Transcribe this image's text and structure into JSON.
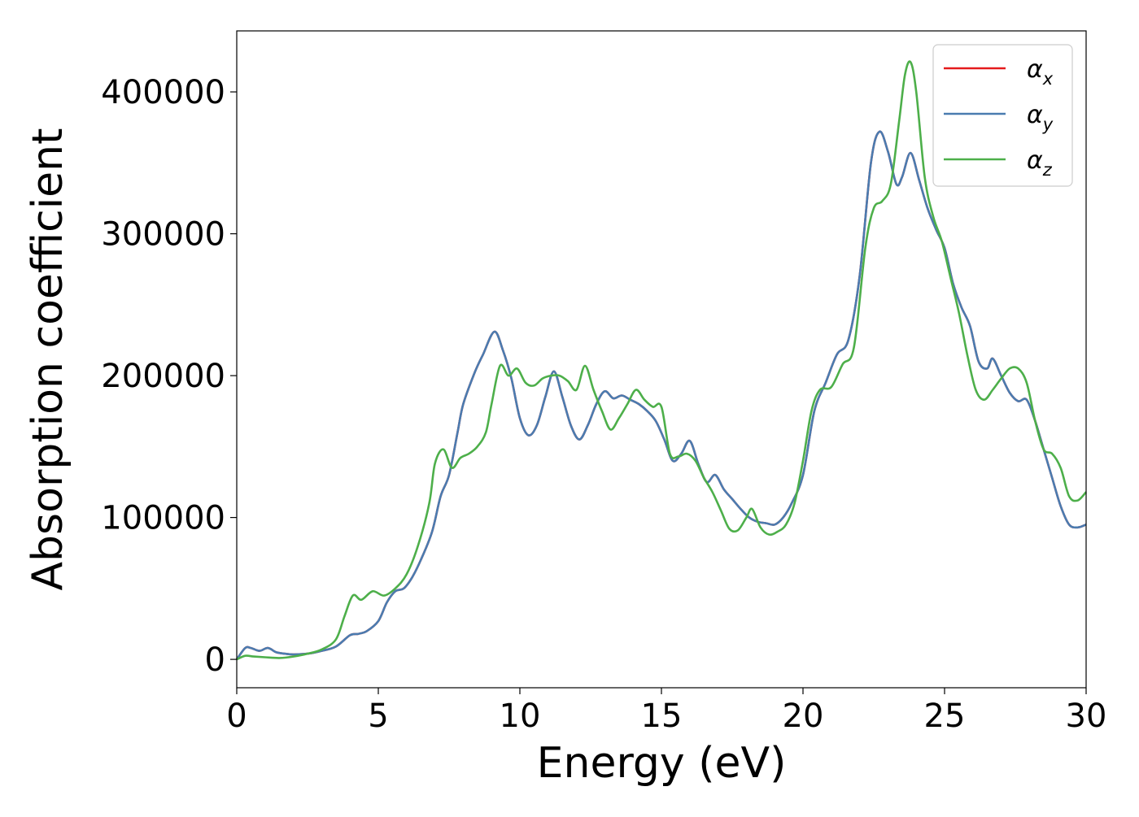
{
  "chart_data": {
    "type": "line",
    "title": "",
    "xlabel": "Energy (eV)",
    "ylabel": "Absorption coefficient",
    "xlim": [
      0,
      30
    ],
    "ylim": [
      -20000,
      443000
    ],
    "xticks": [
      0,
      5,
      10,
      15,
      20,
      25,
      30
    ],
    "yticks": [
      0,
      100000,
      200000,
      300000,
      400000
    ],
    "grid": false,
    "legend_position": "top-right",
    "series": [
      {
        "name": "αx",
        "legend_main": "α",
        "legend_sub": "x",
        "color": "#e41a1c",
        "x": [
          0,
          0.3,
          0.5,
          0.8,
          1.1,
          1.4,
          1.7,
          2.0,
          2.5,
          3.0,
          3.5,
          4.0,
          4.3,
          4.6,
          5.0,
          5.3,
          5.6,
          5.9,
          6.2,
          6.5,
          6.9,
          7.2,
          7.5,
          7.8,
          8.0,
          8.4,
          8.7,
          9.1,
          9.4,
          9.7,
          10.0,
          10.3,
          10.6,
          10.9,
          11.2,
          11.5,
          11.8,
          12.1,
          12.4,
          12.7,
          13.0,
          13.3,
          13.6,
          13.9,
          14.2,
          14.5,
          14.8,
          15.1,
          15.4,
          15.7,
          16.0,
          16.3,
          16.6,
          16.9,
          17.2,
          17.5,
          17.8,
          18.1,
          18.4,
          18.7,
          19.0,
          19.3,
          19.6,
          20.0,
          20.4,
          20.8,
          21.2,
          21.6,
          22.0,
          22.4,
          22.7,
          23.0,
          23.3,
          23.5,
          23.8,
          24.1,
          24.4,
          24.7,
          25.0,
          25.3,
          25.6,
          25.9,
          26.2,
          26.5,
          26.7,
          27.0,
          27.3,
          27.6,
          27.9,
          28.2,
          28.5,
          28.8,
          29.1,
          29.4,
          29.7,
          30.0
        ],
        "y": [
          0,
          8000,
          8000,
          6000,
          8000,
          5000,
          4000,
          3500,
          4000,
          6000,
          9000,
          17000,
          18000,
          20000,
          27000,
          40000,
          48000,
          50000,
          58000,
          70000,
          90000,
          115000,
          130000,
          160000,
          180000,
          202000,
          215000,
          231000,
          218000,
          198000,
          170000,
          158000,
          165000,
          185000,
          203000,
          185000,
          165000,
          155000,
          165000,
          180000,
          189000,
          184000,
          186000,
          183000,
          180000,
          175000,
          168000,
          155000,
          140000,
          145000,
          154000,
          138000,
          125000,
          130000,
          120000,
          113000,
          106000,
          100000,
          97000,
          96000,
          95000,
          100000,
          110000,
          130000,
          175000,
          195000,
          215000,
          225000,
          270000,
          350000,
          372000,
          358000,
          335000,
          340000,
          357000,
          338000,
          318000,
          303000,
          290000,
          265000,
          248000,
          235000,
          210000,
          205000,
          212000,
          200000,
          188000,
          182000,
          183000,
          168000,
          148000,
          128000,
          108000,
          95000,
          93000,
          95000
        ]
      },
      {
        "name": "αy",
        "legend_main": "α",
        "legend_sub": "y",
        "color": "#4a7cb0",
        "x": [
          0,
          0.3,
          0.5,
          0.8,
          1.1,
          1.4,
          1.7,
          2.0,
          2.5,
          3.0,
          3.5,
          4.0,
          4.3,
          4.6,
          5.0,
          5.3,
          5.6,
          5.9,
          6.2,
          6.5,
          6.9,
          7.2,
          7.5,
          7.8,
          8.0,
          8.4,
          8.7,
          9.1,
          9.4,
          9.7,
          10.0,
          10.3,
          10.6,
          10.9,
          11.2,
          11.5,
          11.8,
          12.1,
          12.4,
          12.7,
          13.0,
          13.3,
          13.6,
          13.9,
          14.2,
          14.5,
          14.8,
          15.1,
          15.4,
          15.7,
          16.0,
          16.3,
          16.6,
          16.9,
          17.2,
          17.5,
          17.8,
          18.1,
          18.4,
          18.7,
          19.0,
          19.3,
          19.6,
          20.0,
          20.4,
          20.8,
          21.2,
          21.6,
          22.0,
          22.4,
          22.7,
          23.0,
          23.3,
          23.5,
          23.8,
          24.1,
          24.4,
          24.7,
          25.0,
          25.3,
          25.6,
          25.9,
          26.2,
          26.5,
          26.7,
          27.0,
          27.3,
          27.6,
          27.9,
          28.2,
          28.5,
          28.8,
          29.1,
          29.4,
          29.7,
          30.0
        ],
        "y": [
          0,
          8000,
          8000,
          6000,
          8000,
          5000,
          4000,
          3500,
          4000,
          6000,
          9000,
          17000,
          18000,
          20000,
          27000,
          40000,
          48000,
          50000,
          58000,
          70000,
          90000,
          115000,
          130000,
          160000,
          180000,
          202000,
          215000,
          231000,
          218000,
          198000,
          170000,
          158000,
          165000,
          185000,
          203000,
          185000,
          165000,
          155000,
          165000,
          180000,
          189000,
          184000,
          186000,
          183000,
          180000,
          175000,
          168000,
          155000,
          140000,
          145000,
          154000,
          138000,
          125000,
          130000,
          120000,
          113000,
          106000,
          100000,
          97000,
          96000,
          95000,
          100000,
          110000,
          130000,
          175000,
          195000,
          215000,
          225000,
          270000,
          350000,
          372000,
          358000,
          335000,
          340000,
          357000,
          338000,
          318000,
          303000,
          290000,
          265000,
          248000,
          235000,
          210000,
          205000,
          212000,
          200000,
          188000,
          182000,
          183000,
          168000,
          148000,
          128000,
          108000,
          95000,
          93000,
          95000
        ]
      },
      {
        "name": "αz",
        "legend_main": "α",
        "legend_sub": "z",
        "color": "#4daf4a",
        "x": [
          0,
          0.3,
          0.6,
          1.0,
          1.5,
          2.0,
          2.5,
          3.0,
          3.5,
          3.8,
          4.1,
          4.4,
          4.8,
          5.2,
          5.6,
          6.0,
          6.4,
          6.8,
          7.0,
          7.3,
          7.6,
          7.9,
          8.2,
          8.5,
          8.8,
          9.0,
          9.3,
          9.6,
          9.9,
          10.2,
          10.5,
          10.8,
          11.1,
          11.4,
          11.7,
          12.0,
          12.3,
          12.6,
          12.9,
          13.2,
          13.5,
          13.8,
          14.1,
          14.4,
          14.7,
          15.0,
          15.3,
          15.6,
          15.9,
          16.2,
          16.5,
          16.8,
          17.1,
          17.4,
          17.7,
          18.0,
          18.2,
          18.5,
          18.8,
          19.1,
          19.4,
          19.7,
          20.0,
          20.3,
          20.6,
          21.0,
          21.4,
          21.8,
          22.2,
          22.5,
          22.8,
          23.1,
          23.4,
          23.6,
          23.8,
          24.0,
          24.3,
          24.6,
          24.9,
          25.2,
          25.5,
          25.8,
          26.1,
          26.4,
          26.7,
          27.0,
          27.3,
          27.6,
          27.9,
          28.2,
          28.5,
          28.8,
          29.1,
          29.4,
          29.7,
          30.0
        ],
        "y": [
          0,
          2500,
          2000,
          1500,
          1000,
          2000,
          4000,
          7000,
          14000,
          30000,
          45000,
          42000,
          48000,
          45000,
          50000,
          60000,
          80000,
          110000,
          138000,
          148000,
          135000,
          142000,
          145000,
          150000,
          160000,
          180000,
          207000,
          200000,
          205000,
          195000,
          193000,
          198000,
          200000,
          200000,
          196000,
          190000,
          207000,
          190000,
          175000,
          162000,
          170000,
          180000,
          190000,
          183000,
          178000,
          178000,
          145000,
          143000,
          145000,
          140000,
          128000,
          118000,
          105000,
          92000,
          91000,
          100000,
          106000,
          93000,
          88000,
          90000,
          95000,
          110000,
          140000,
          175000,
          190000,
          192000,
          208000,
          220000,
          290000,
          318000,
          323000,
          335000,
          380000,
          412000,
          421000,
          400000,
          340000,
          312000,
          295000,
          270000,
          245000,
          215000,
          190000,
          183000,
          190000,
          198000,
          205000,
          205000,
          195000,
          168000,
          148000,
          145000,
          135000,
          115000,
          112000,
          118000
        ]
      }
    ]
  }
}
